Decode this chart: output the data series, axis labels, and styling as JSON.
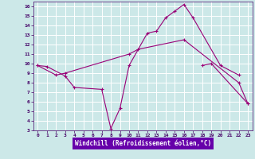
{
  "xlabel": "Windchill (Refroidissement éolien,°C)",
  "background_color": "#cce8e8",
  "grid_color": "#ffffff",
  "line_color": "#990077",
  "xlabel_bg": "#6600aa",
  "xlabel_fg": "#ffffff",
  "xlim": [
    -0.5,
    23.5
  ],
  "ylim": [
    3,
    16.5
  ],
  "xticks": [
    0,
    1,
    2,
    3,
    4,
    5,
    6,
    7,
    8,
    9,
    10,
    11,
    12,
    13,
    14,
    15,
    16,
    17,
    18,
    19,
    20,
    21,
    22,
    23
  ],
  "yticks": [
    3,
    4,
    5,
    6,
    7,
    8,
    9,
    10,
    11,
    12,
    13,
    14,
    15,
    16
  ],
  "line1_x": [
    0,
    1,
    3,
    4,
    7,
    8,
    9,
    10,
    12,
    13,
    14,
    15,
    16,
    17,
    20,
    22
  ],
  "line1_y": [
    9.8,
    9.7,
    8.7,
    7.5,
    7.3,
    3.2,
    5.3,
    9.8,
    13.2,
    13.4,
    14.8,
    15.5,
    16.2,
    14.8,
    9.8,
    8.8
  ],
  "line2_x": [
    0,
    2,
    3,
    10,
    11,
    16,
    22,
    23
  ],
  "line2_y": [
    9.8,
    8.8,
    9.0,
    11.0,
    11.5,
    12.5,
    8.0,
    5.8
  ],
  "line3_x": [
    18,
    19,
    23
  ],
  "line3_y": [
    9.8,
    10.0,
    5.8
  ]
}
